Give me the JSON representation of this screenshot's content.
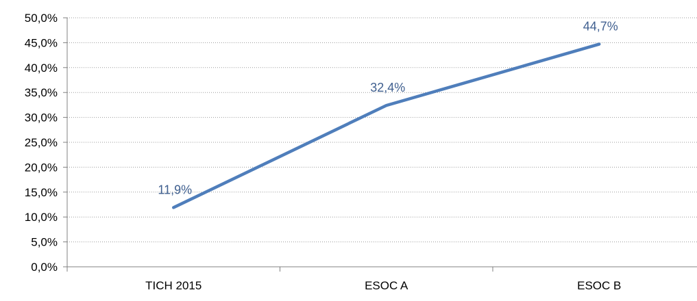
{
  "chart_data": {
    "type": "line",
    "categories": [
      "TICH 2015",
      "ESOC A",
      "ESOC B"
    ],
    "series": [
      {
        "values": [
          11.9,
          32.4,
          44.7
        ],
        "data_labels": [
          "11,9%",
          "32,4%",
          "44,7%"
        ]
      }
    ],
    "y_ticks": [
      0,
      5,
      10,
      15,
      20,
      25,
      30,
      35,
      40,
      45,
      50
    ],
    "y_tick_labels": [
      "0,0%",
      "5,0%",
      "10,0%",
      "15,0%",
      "20,0%",
      "25,0%",
      "30,0%",
      "35,0%",
      "40,0%",
      "45,0%",
      "50,0%"
    ],
    "ylim": [
      0,
      50
    ],
    "grid": "horizontal dotted",
    "legend": "none",
    "colors": {
      "line": "#4F7EBB",
      "data_label": "#3F5F8F",
      "grid": "#9a9a9a",
      "axis": "#808080"
    }
  }
}
